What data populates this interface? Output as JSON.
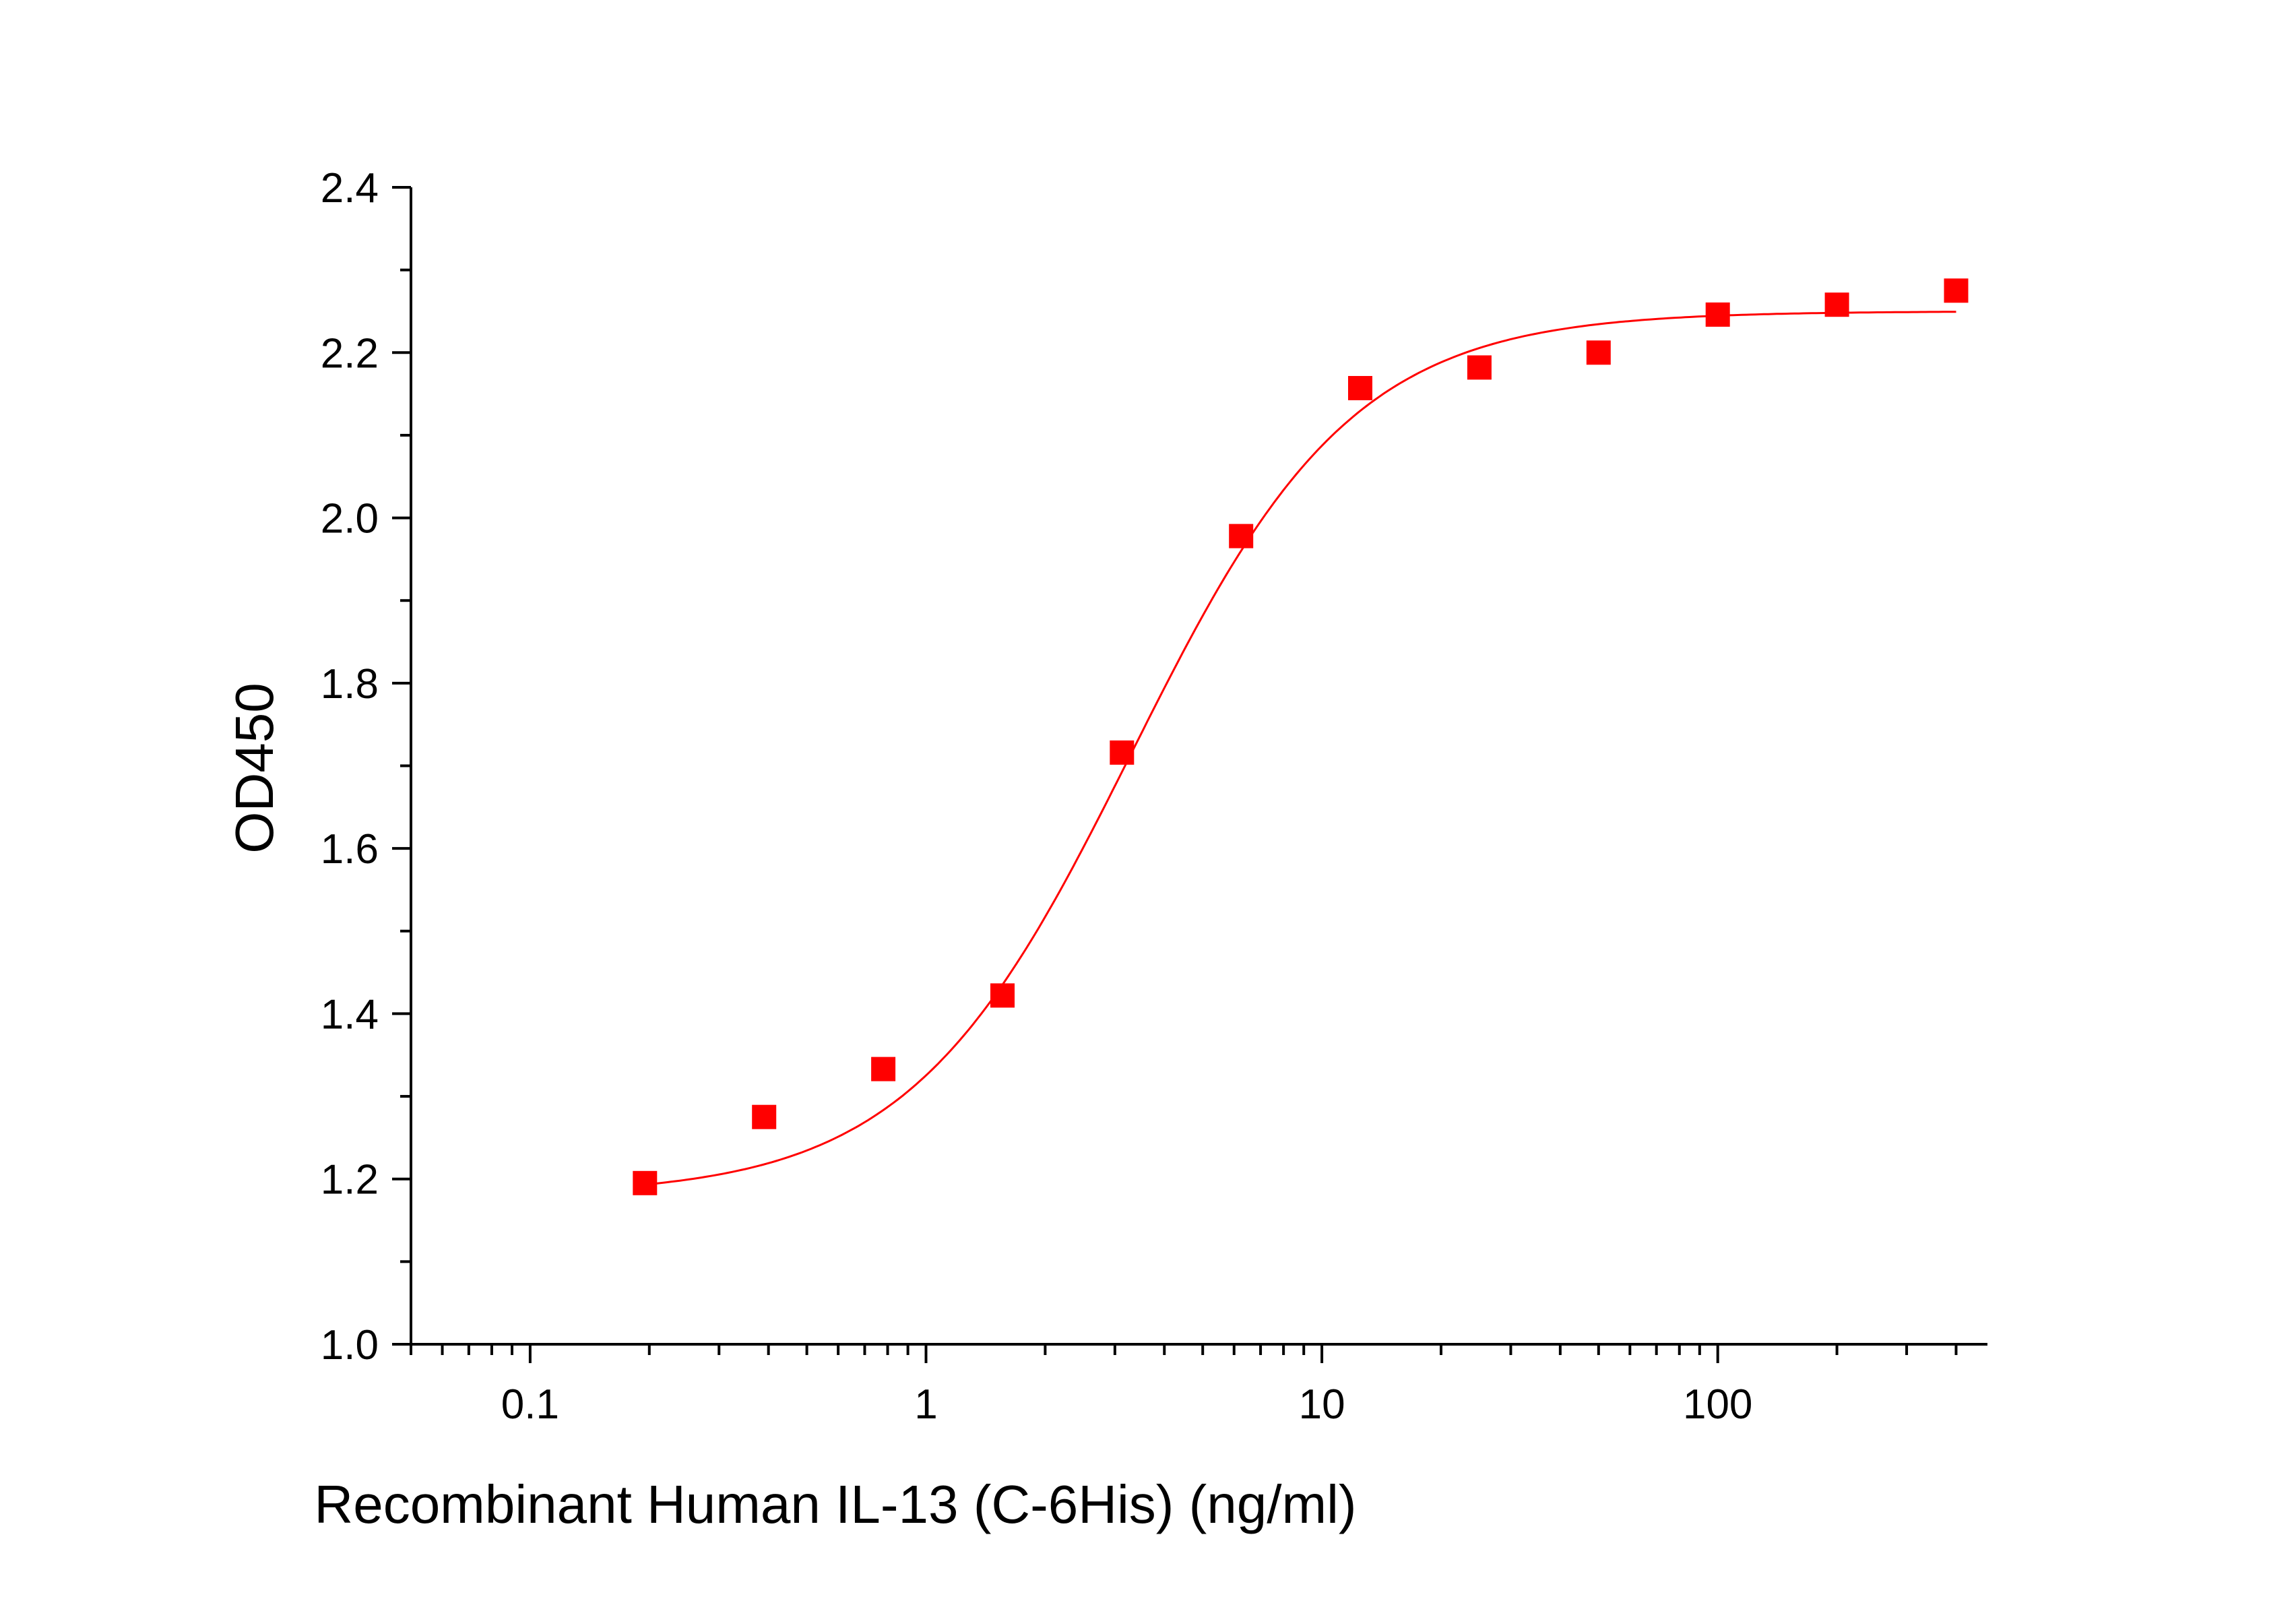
{
  "chart_data": {
    "type": "scatter",
    "title": "",
    "xlabel": "Recombinant Human IL-13 (C-6His) (ng/ml)",
    "ylabel": "OD450",
    "x_scale": "log",
    "xlim": [
      0.05,
      480
    ],
    "ylim": [
      1.0,
      2.4
    ],
    "x_ticks": [
      0.1,
      1,
      10,
      100
    ],
    "x_tick_labels": [
      "0.1",
      "1",
      "10",
      "100"
    ],
    "y_ticks": [
      1.0,
      1.2,
      1.4,
      1.6,
      1.8,
      2.0,
      2.2,
      2.4
    ],
    "y_tick_labels": [
      "1.0",
      "1.2",
      "1.4",
      "1.6",
      "1.8",
      "2.0",
      "2.2",
      "2.4"
    ],
    "grid": false,
    "legend": "none",
    "series": [
      {
        "marker": "square",
        "color": "#ff0000",
        "x": [
          0.195,
          0.39,
          0.78,
          1.56,
          3.125,
          6.25,
          12.5,
          25,
          50,
          100,
          200,
          400
        ],
        "y": [
          1.195,
          1.275,
          1.333,
          1.422,
          1.716,
          1.978,
          2.157,
          2.182,
          2.2,
          2.246,
          2.258,
          2.275
        ]
      }
    ],
    "fit_curve": {
      "model": "4PL",
      "color": "#ff0000",
      "bottom": 1.18,
      "top": 2.25,
      "ec50": 3.3,
      "hill": 1.55,
      "x_range": [
        0.195,
        400
      ]
    }
  }
}
